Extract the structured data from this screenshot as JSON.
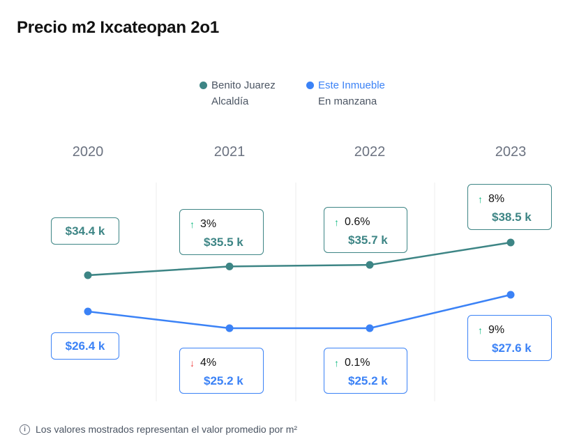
{
  "title": "Precio m2 Ixcateopan 2o1",
  "legend": [
    {
      "name": "Benito Juarez",
      "sub": "Alcaldía",
      "color": "#3d8585"
    },
    {
      "name": "Este Inmueble",
      "sub": "En manzana",
      "color": "#3b82f6"
    }
  ],
  "chart_data": {
    "type": "line",
    "title": "Precio m2 Ixcateopan 2o1",
    "categories": [
      "2020",
      "2021",
      "2022",
      "2023"
    ],
    "unit": "k",
    "series": [
      {
        "name": "Benito Juarez",
        "sub": "Alcaldía",
        "color": "#3d8585",
        "values": [
          34.4,
          35.5,
          35.7,
          38.5
        ],
        "labels": [
          "$34.4 k",
          "$35.5 k",
          "$35.7 k",
          "$38.5 k"
        ],
        "changes": [
          null,
          {
            "dir": "up",
            "text": "3%"
          },
          {
            "dir": "up",
            "text": "0.6%"
          },
          {
            "dir": "up",
            "text": "8%"
          }
        ]
      },
      {
        "name": "Este Inmueble",
        "sub": "En manzana",
        "color": "#3b82f6",
        "values": [
          26.4,
          25.2,
          25.2,
          27.6
        ],
        "labels": [
          "$26.4 k",
          "$25.2 k",
          "$25.2 k",
          "$27.6 k"
        ],
        "changes": [
          null,
          {
            "dir": "down",
            "text": "4%"
          },
          {
            "dir": "up",
            "text": "0.1%"
          },
          {
            "dir": "up",
            "text": "9%"
          }
        ]
      }
    ]
  },
  "footnote": "Los valores mostrados representan el valor promedio por m²"
}
